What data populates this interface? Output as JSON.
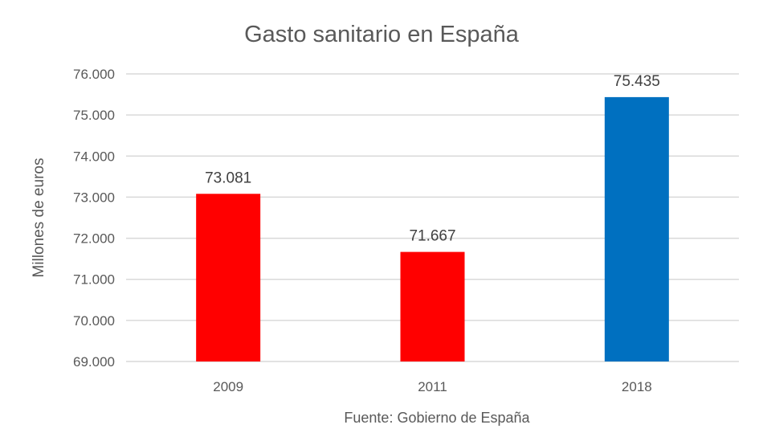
{
  "chart_data": {
    "type": "bar",
    "title": "Gasto sanitario en España",
    "ylabel": "Millones de euros",
    "xlabel": "",
    "source": "Fuente: Gobierno de España",
    "categories": [
      "2009",
      "2011",
      "2018"
    ],
    "values": [
      73081,
      71667,
      75435
    ],
    "value_labels": [
      "73.081",
      "71.667",
      "75.435"
    ],
    "bar_colors": [
      "#ff0000",
      "#ff0000",
      "#0070c0"
    ],
    "ylim": [
      69000,
      76000
    ],
    "yticks": [
      69000,
      70000,
      71000,
      72000,
      73000,
      74000,
      75000,
      76000
    ],
    "ytick_labels": [
      "69.000",
      "70.000",
      "71.000",
      "72.000",
      "73.000",
      "74.000",
      "75.000",
      "76.000"
    ],
    "grid": true,
    "legend": "none"
  }
}
